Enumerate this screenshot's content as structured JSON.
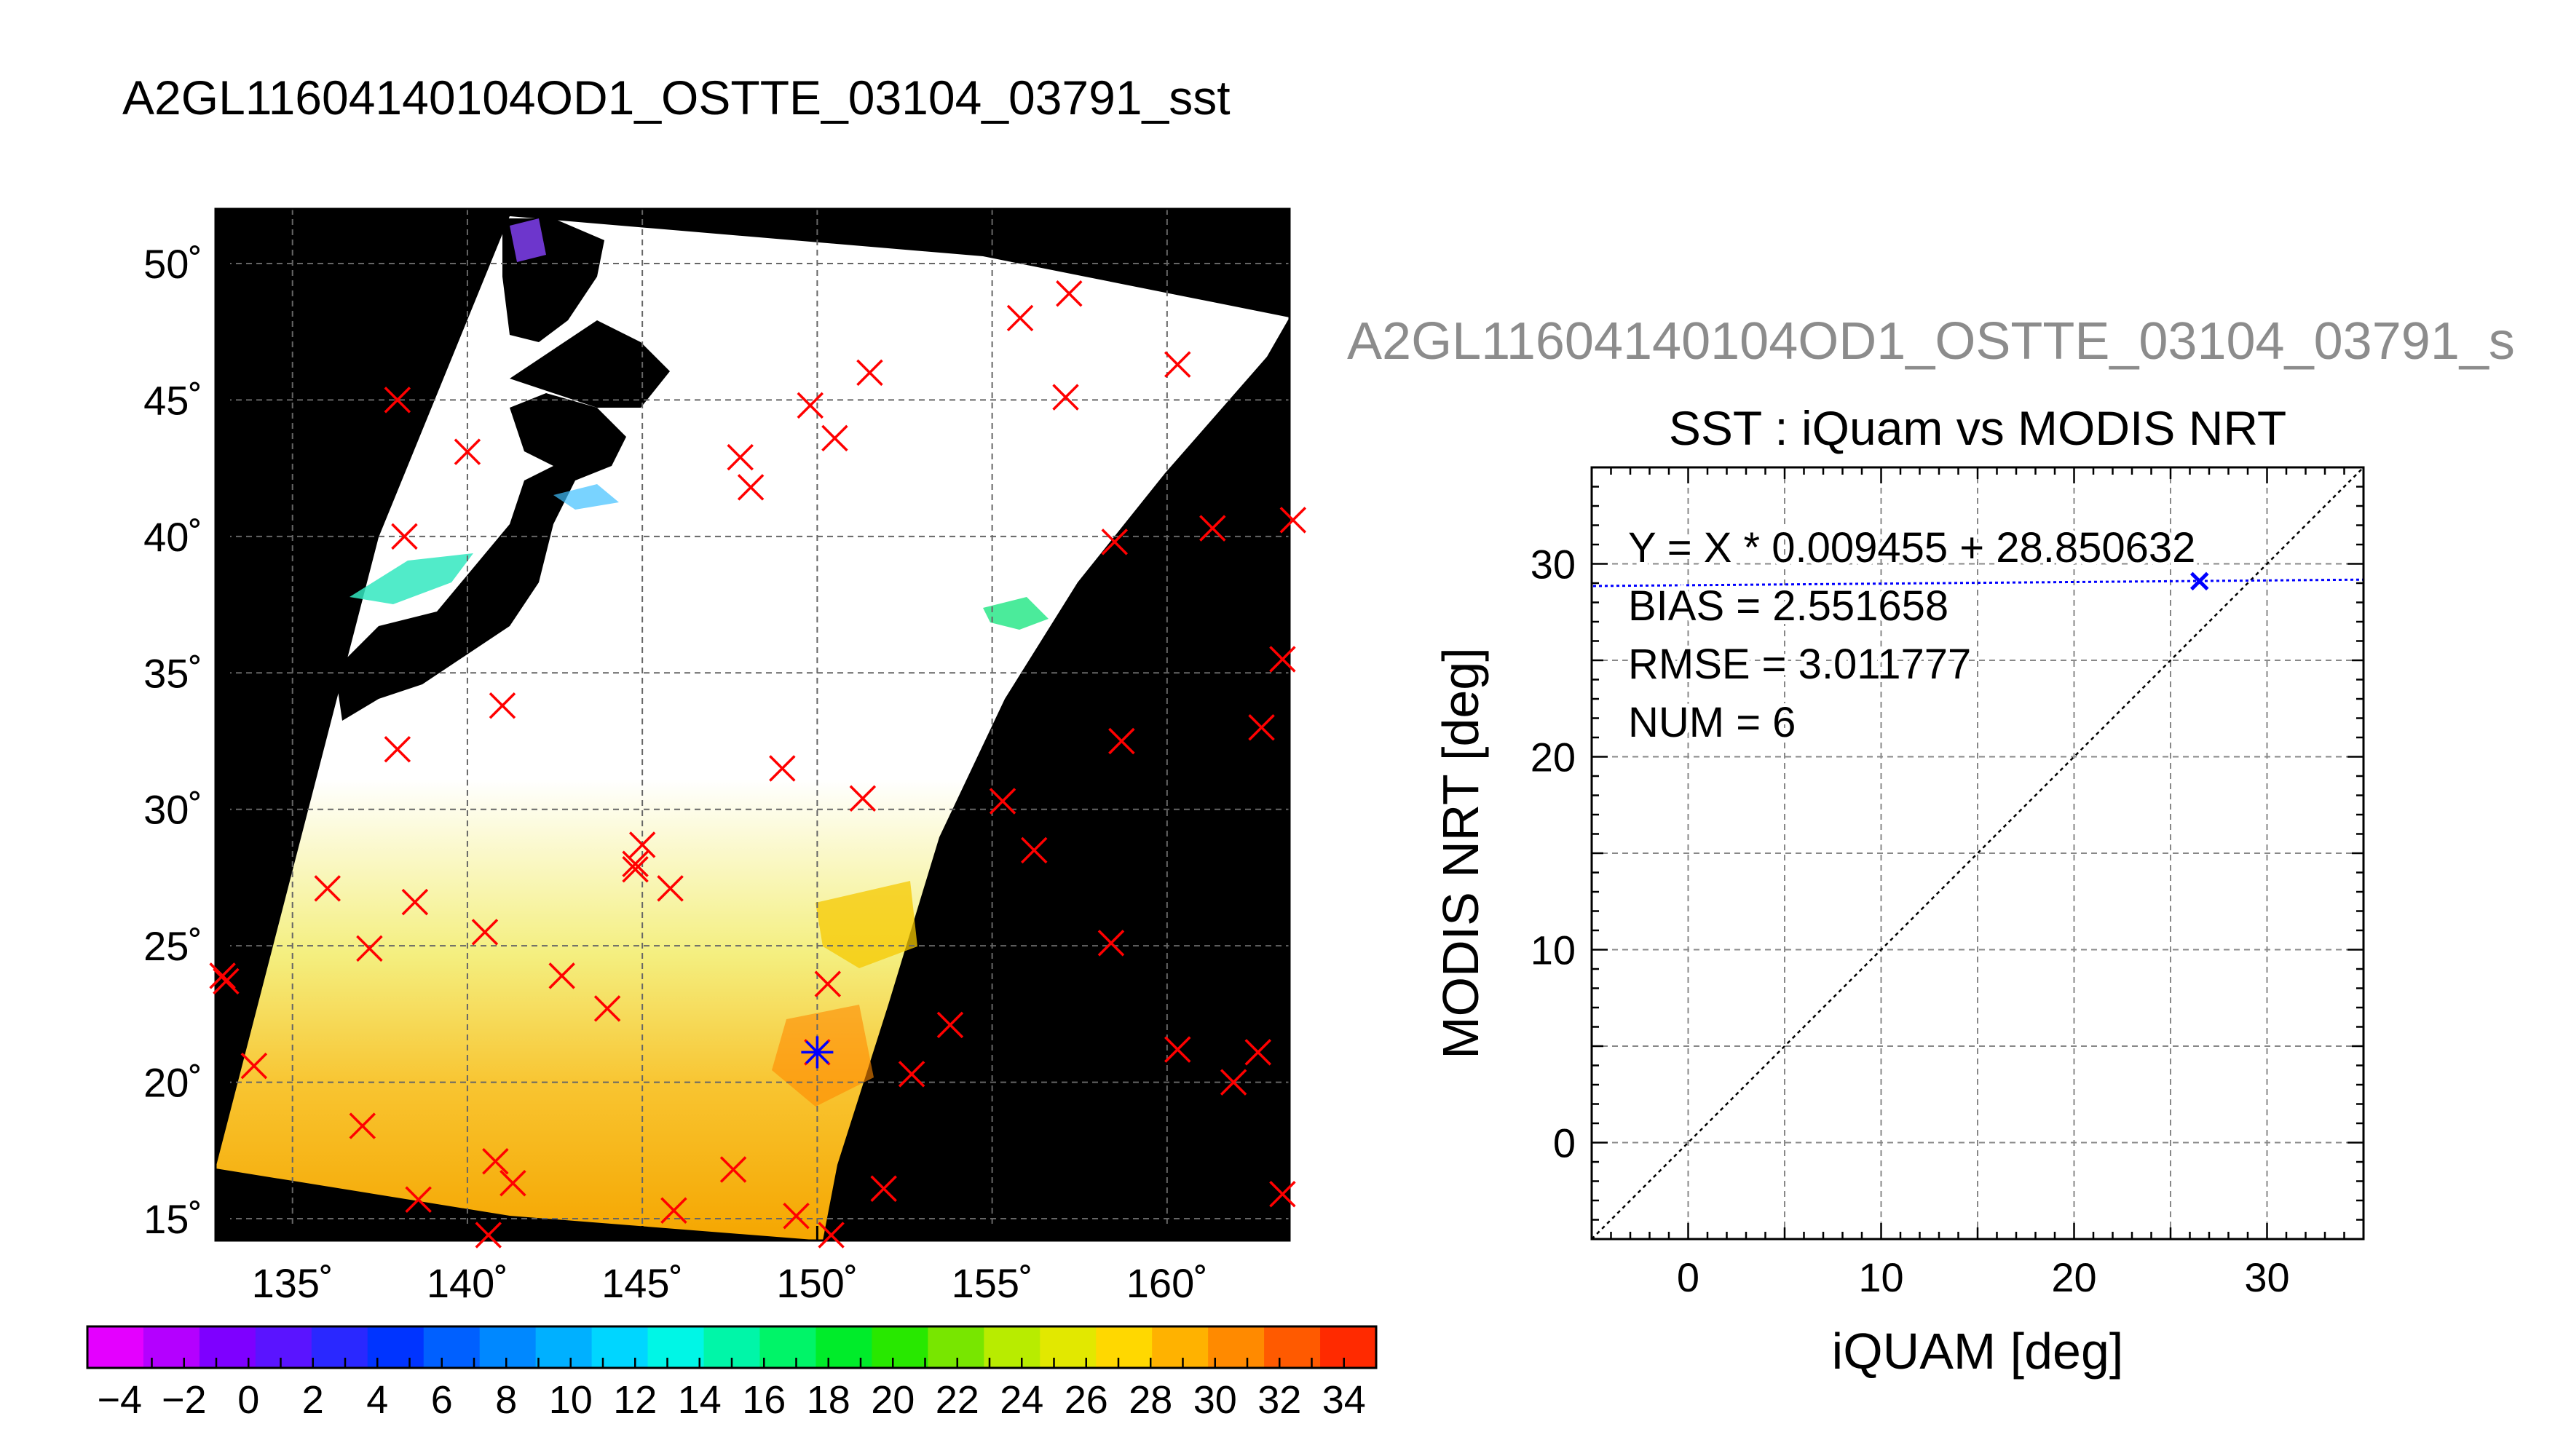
{
  "header": {
    "title": "A2GL11604140104OD1_OSTTE_03104_03791_sst",
    "right_title": "A2GL11604140104OD1_OSTTE_03104_03791_s"
  },
  "chart_data": [
    {
      "type": "map",
      "lon_range": [
        132.8,
        163.5
      ],
      "lat_range": [
        14.2,
        52.0
      ],
      "lon_ticks": [
        135,
        140,
        145,
        150,
        155,
        160
      ],
      "lat_ticks": [
        15,
        20,
        25,
        30,
        35,
        40,
        45,
        50
      ],
      "lon_tick_labels": [
        "135˚",
        "140˚",
        "145˚",
        "150˚",
        "155˚",
        "160˚"
      ],
      "lat_tick_labels": [
        "15˚",
        "20˚",
        "25˚",
        "30˚",
        "35˚",
        "40˚",
        "45˚",
        "50˚"
      ],
      "grid": true,
      "marker_color": "#ff0000",
      "matchup_color": "#0000ff",
      "iquam_points": [
        [
          138.0,
          45.0
        ],
        [
          140.0,
          43.1
        ],
        [
          138.2,
          40.0
        ],
        [
          147.8,
          42.9
        ],
        [
          148.1,
          41.8
        ],
        [
          149.8,
          44.8
        ],
        [
          150.5,
          43.6
        ],
        [
          151.5,
          46.0
        ],
        [
          155.8,
          48.0
        ],
        [
          157.2,
          48.9
        ],
        [
          157.1,
          45.1
        ],
        [
          160.3,
          46.3
        ],
        [
          158.5,
          39.8
        ],
        [
          161.3,
          40.3
        ],
        [
          163.6,
          40.6
        ],
        [
          138.0,
          32.2
        ],
        [
          141.0,
          33.8
        ],
        [
          149.0,
          31.5
        ],
        [
          151.3,
          30.4
        ],
        [
          155.3,
          30.3
        ],
        [
          163.3,
          35.5
        ],
        [
          158.7,
          32.5
        ],
        [
          162.7,
          33.0
        ],
        [
          136.0,
          27.1
        ],
        [
          138.5,
          26.6
        ],
        [
          137.2,
          24.9
        ],
        [
          140.5,
          25.5
        ],
        [
          144.8,
          28.0
        ],
        [
          145.0,
          28.7
        ],
        [
          144.8,
          27.8
        ],
        [
          145.8,
          27.1
        ],
        [
          156.2,
          28.5
        ],
        [
          158.4,
          25.1
        ],
        [
          133.1,
          23.7
        ],
        [
          133.0,
          23.9
        ],
        [
          142.7,
          23.9
        ],
        [
          144.0,
          22.7
        ],
        [
          150.3,
          23.6
        ],
        [
          153.8,
          22.1
        ],
        [
          152.7,
          20.3
        ],
        [
          133.9,
          20.6
        ],
        [
          137.0,
          18.4
        ],
        [
          140.8,
          17.1
        ],
        [
          141.3,
          16.3
        ],
        [
          138.6,
          15.7
        ],
        [
          145.9,
          15.3
        ],
        [
          147.6,
          16.8
        ],
        [
          149.4,
          15.1
        ],
        [
          150.4,
          14.4
        ],
        [
          151.9,
          16.1
        ],
        [
          140.6,
          14.4
        ],
        [
          160.3,
          21.2
        ],
        [
          161.9,
          20.0
        ],
        [
          162.6,
          21.1
        ],
        [
          163.3,
          15.9
        ]
      ],
      "matchup_points": [
        [
          150.0,
          21.1
        ]
      ]
    },
    {
      "type": "colorbar",
      "min": -5,
      "max": 35,
      "step": 2,
      "ticks": [
        "−4",
        "−2",
        "0",
        "2",
        "4",
        "6",
        "8",
        "10",
        "12",
        "14",
        "16",
        "18",
        "20",
        "22",
        "24",
        "26",
        "28",
        "30",
        "32",
        "34"
      ],
      "colors": [
        "#e400ff",
        "#b400ff",
        "#7e00ff",
        "#5a14ff",
        "#2a28ff",
        "#0034ff",
        "#0060ff",
        "#0088ff",
        "#00b0ff",
        "#00d6ff",
        "#00f6e6",
        "#00f6a8",
        "#00f468",
        "#00ec2a",
        "#28e800",
        "#78e600",
        "#b8ec00",
        "#e2e800",
        "#ffd800",
        "#ffb200",
        "#ff8a00",
        "#ff5a00",
        "#ff2a00"
      ]
    },
    {
      "type": "scatter",
      "title": "SST : iQuam vs MODIS NRT",
      "xlabel": "iQUAM [deg]",
      "ylabel": "MODIS NRT [deg]",
      "xlim": [
        -5,
        35
      ],
      "ylim": [
        -5,
        35
      ],
      "xticks": [
        0,
        10,
        20,
        30
      ],
      "yticks": [
        0,
        10,
        20,
        30
      ],
      "grid": true,
      "points": [
        {
          "x": 26.5,
          "y": 29.1
        }
      ],
      "fit": {
        "slope": 0.009455,
        "intercept": 28.850632
      },
      "stats": [
        "Y = X * 0.009455 + 28.850632",
        "BIAS = 2.551658",
        "RMSE = 3.011777",
        "NUM = 6"
      ],
      "point_color": "#0000ff"
    }
  ]
}
